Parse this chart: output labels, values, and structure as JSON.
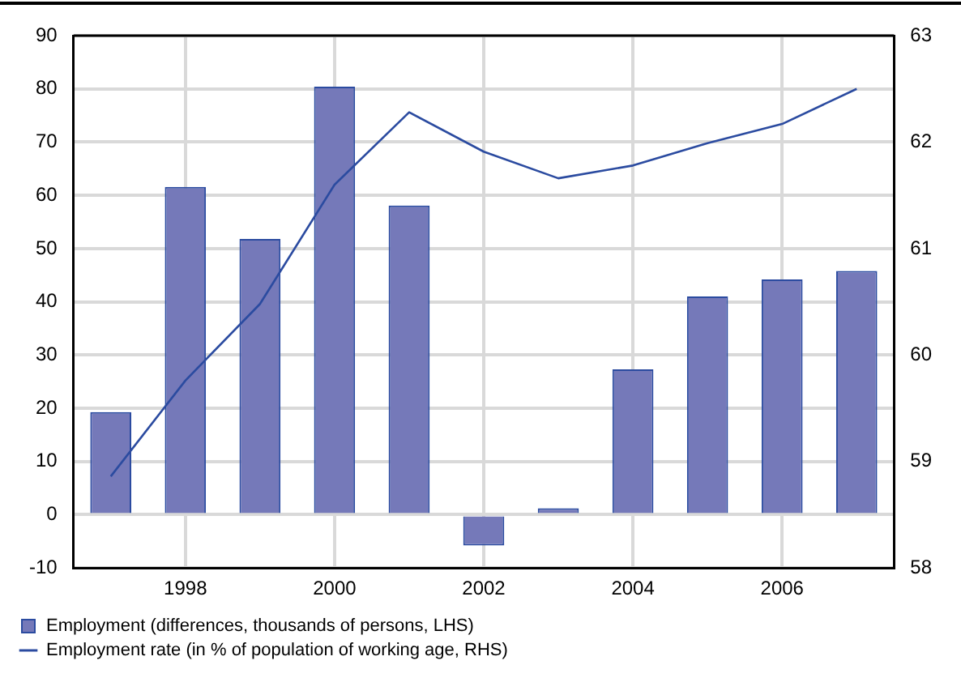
{
  "chart_data": {
    "type": "bar",
    "categories": [
      null,
      "1998",
      null,
      "2000",
      null,
      "2002",
      null,
      "2004",
      null,
      "2006",
      null
    ],
    "series": [
      {
        "name": "Employment (differences, thousands of persons, LHS)",
        "color": "#7579b9",
        "values": [
          19.3,
          61.6,
          51.8,
          80.4,
          58.1,
          -5.8,
          1.2,
          27.3,
          41,
          44.2,
          45.8
        ]
      },
      {
        "name": "Employment rate (in % of population of working age, RHS)",
        "type": "line",
        "axis": "y2",
        "color": "#2b4ba0",
        "values": [
          58.86,
          59.76,
          60.48,
          61.6,
          62.28,
          61.91,
          61.66,
          61.78,
          61.99,
          62.17,
          62.5
        ]
      }
    ],
    "ylim": [
      -10,
      90
    ],
    "yticks": [
      -10,
      0,
      10,
      20,
      30,
      40,
      50,
      60,
      70,
      80,
      90
    ],
    "y2lim": [
      58,
      63
    ],
    "y2ticks": [
      58,
      59,
      60,
      61,
      62,
      63
    ],
    "grid": true,
    "legend": "bottom left",
    "marker": "none",
    "line_style": "solid"
  }
}
